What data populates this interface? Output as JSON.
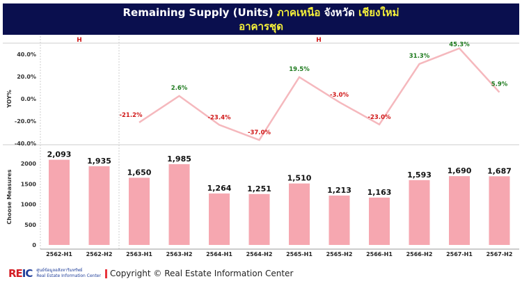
{
  "header": {
    "title_en": "Remaining Supply (Units)",
    "region": "ภาคเหนือ",
    "province_label": "จังหวัด",
    "province": "เชียงใหม่",
    "type": "อาคารชุด"
  },
  "footer": {
    "logo": "REIC",
    "org_th": "ศูนย์ข้อมูลอสังหาริมทรัพย์",
    "org_en": "Real Estate Information Center",
    "copyright": "Copyright © Real Estate Information Center"
  },
  "chart_data": [
    {
      "type": "line",
      "title": "YOY%",
      "ylabel": "YOY%",
      "ylim": [
        -40,
        45
      ],
      "yticks": [
        "40.0%",
        "20.0%",
        "0.0%",
        "-20.0%",
        "-40.0%"
      ],
      "ytick_values": [
        40,
        20,
        0,
        -20,
        -40
      ],
      "groups": [
        {
          "label": "H",
          "span": 2
        },
        {
          "label": "H",
          "span": 10
        }
      ],
      "categories": [
        "2562-H1",
        "2562-H2",
        "2563-H1",
        "2563-H2",
        "2564-H1",
        "2564-H2",
        "2565-H1",
        "2565-H2",
        "2566-H1",
        "2566-H2",
        "2567-H1",
        "2567-H2"
      ],
      "values": [
        null,
        null,
        -21.2,
        2.6,
        -23.4,
        -37.0,
        19.5,
        -3.0,
        -23.0,
        31.3,
        45.3,
        5.9
      ],
      "labels": [
        "",
        "",
        "-21.2%",
        "2.6%",
        "-23.4%",
        "-37.0%",
        "19.5%",
        "-3.0%",
        "-23.0%",
        "31.3%",
        "45.3%",
        "5.9%"
      ],
      "colors": {
        "line": "#f5b8bd",
        "positive": "#1e7a1e",
        "negative": "#d01818"
      }
    },
    {
      "type": "bar",
      "ylabel": "Choose Measures",
      "ylim": [
        0,
        2100
      ],
      "yticks": [
        "2000",
        "1500",
        "1000",
        "500",
        "0"
      ],
      "ytick_values": [
        2000,
        1500,
        1000,
        500,
        0
      ],
      "categories": [
        "2562-H1",
        "2562-H2",
        "2563-H1",
        "2563-H2",
        "2564-H1",
        "2564-H2",
        "2565-H1",
        "2565-H2",
        "2566-H1",
        "2566-H2",
        "2567-H1",
        "2567-H2"
      ],
      "values": [
        2093,
        1935,
        1650,
        1985,
        1264,
        1251,
        1510,
        1213,
        1163,
        1593,
        1690,
        1687
      ],
      "labels": [
        "2,093",
        "1,935",
        "1,650",
        "1,985",
        "1,264",
        "1,251",
        "1,510",
        "1,213",
        "1,163",
        "1,593",
        "1,690",
        "1,687"
      ],
      "colors": {
        "bar": "#f6a7b0"
      }
    }
  ]
}
